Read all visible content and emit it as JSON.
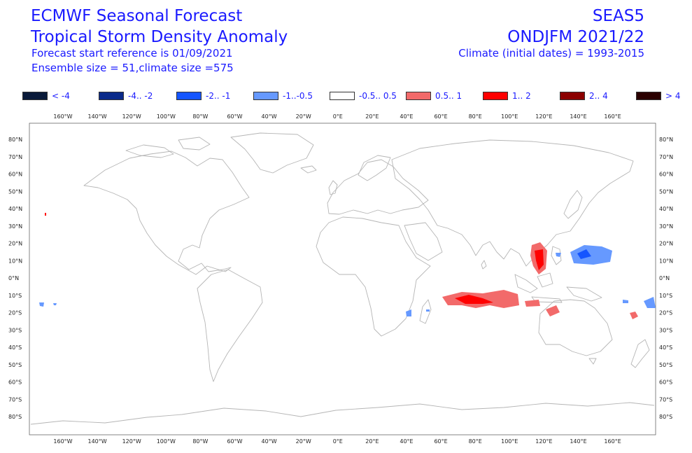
{
  "header": {
    "title_line1": "ECMWF Seasonal Forecast",
    "title_line2": "Tropical Storm Density Anomaly",
    "start_reference": "Forecast start reference is 01/09/2021",
    "ensemble": "Ensemble size = 51,climate size =575",
    "system": "SEAS5",
    "season": "ONDJFM 2021/22",
    "climate": "Climate (initial dates) = 1993-2015"
  },
  "legend": [
    {
      "label": "< -4",
      "color": "#0a1a3a"
    },
    {
      "label": "-4.. -2",
      "color": "#0a2a8a"
    },
    {
      "label": "-2.. -1",
      "color": "#1555ff"
    },
    {
      "label": "-1..-0.5",
      "color": "#6699ff"
    },
    {
      "label": "-0.5.. 0.5",
      "color": "#ffffff"
    },
    {
      "label": "0.5.. 1",
      "color": "#f26a6a"
    },
    {
      "label": "1.. 2",
      "color": "#ff0000"
    },
    {
      "label": "2.. 4",
      "color": "#8b0000"
    },
    {
      "label": "> 4",
      "color": "#2a0000"
    }
  ],
  "map": {
    "lon_labels": [
      "160°W",
      "140°W",
      "120°W",
      "100°W",
      "80°W",
      "60°W",
      "40°W",
      "20°W",
      "0°E",
      "20°E",
      "40°E",
      "60°E",
      "80°E",
      "100°E",
      "120°E",
      "140°E",
      "160°E"
    ],
    "lat_labels": [
      "80°N",
      "70°N",
      "60°N",
      "50°N",
      "40°N",
      "30°N",
      "20°N",
      "10°N",
      "0°N",
      "10°S",
      "20°S",
      "30°S",
      "40°S",
      "50°S",
      "60°S",
      "70°S",
      "80°S"
    ]
  }
}
